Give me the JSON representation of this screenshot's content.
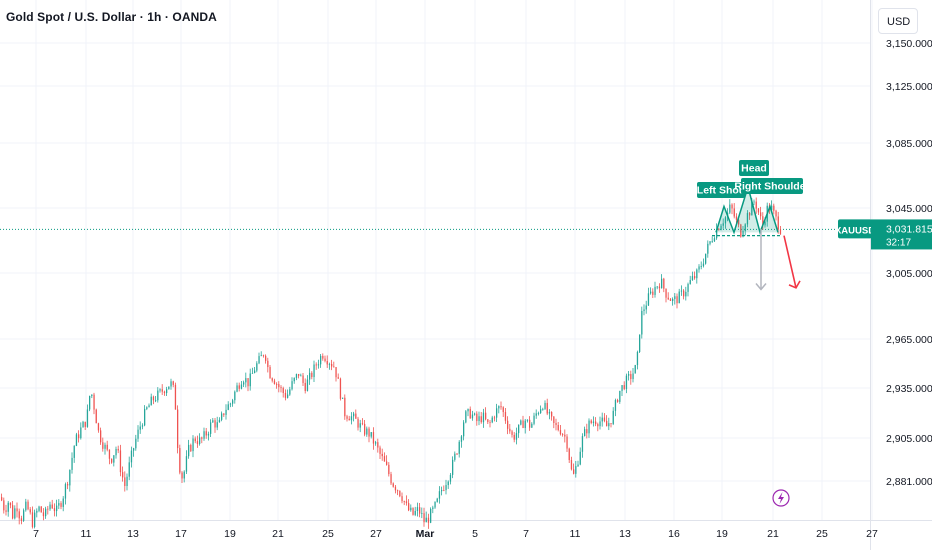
{
  "header": {
    "title": "Gold Spot / U.S. Dollar · 1h · OANDA",
    "currency_button": "USD"
  },
  "colors": {
    "up": "#26a69a",
    "down": "#ef5350",
    "accent_teal": "#089981",
    "grid": "#f0f3fa",
    "text": "#131722",
    "forecast_arrow_red": "#f23645",
    "forecast_arrow_gray": "#b2b5be",
    "event_icon": "#9c27b0"
  },
  "price_label": {
    "symbol": "XAUUSD",
    "price": "3,031.815",
    "countdown": "32:17"
  },
  "event_marker": {
    "icon": "lightning-icon",
    "date": "Mar 21"
  },
  "chart_data": {
    "type": "candlestick",
    "title": "Gold Spot / U.S. Dollar · 1h · OANDA",
    "y_ticks": [
      "3,150.000",
      "3,125.000",
      "3,085.000",
      "3,045.000",
      "3,005.000",
      "2,965.000",
      "2,935.000",
      "2,905.000",
      "2,881.000"
    ],
    "y_tick_values": [
      3150,
      3125,
      3085,
      3045,
      3005,
      2965,
      2935,
      2905,
      2881
    ],
    "x_ticks": [
      "7",
      "11",
      "13",
      "17",
      "19",
      "21",
      "25",
      "27",
      "Mar",
      "5",
      "7",
      "11",
      "13",
      "16",
      "19",
      "21",
      "25",
      "27"
    ],
    "grid": true,
    "current_price": 3031.815,
    "path": [
      [
        0,
        2872
      ],
      [
        4,
        2865
      ],
      [
        8,
        2870
      ],
      [
        12,
        2862
      ],
      [
        16,
        2868
      ],
      [
        20,
        2860
      ],
      [
        26,
        2867
      ],
      [
        32,
        2858
      ],
      [
        38,
        2866
      ],
      [
        44,
        2861
      ],
      [
        50,
        2869
      ],
      [
        56,
        2864
      ],
      [
        62,
        2872
      ],
      [
        68,
        2884
      ],
      [
        74,
        2902
      ],
      [
        80,
        2910
      ],
      [
        86,
        2916
      ],
      [
        90,
        2935
      ],
      [
        94,
        2922
      ],
      [
        98,
        2908
      ],
      [
        104,
        2900
      ],
      [
        110,
        2893
      ],
      [
        116,
        2900
      ],
      [
        120,
        2888
      ],
      [
        124,
        2878
      ],
      [
        128,
        2888
      ],
      [
        134,
        2902
      ],
      [
        140,
        2913
      ],
      [
        146,
        2922
      ],
      [
        152,
        2928
      ],
      [
        158,
        2931
      ],
      [
        164,
        2935
      ],
      [
        170,
        2938
      ],
      [
        174,
        2932
      ],
      [
        178,
        2892
      ],
      [
        182,
        2882
      ],
      [
        188,
        2898
      ],
      [
        194,
        2905
      ],
      [
        200,
        2903
      ],
      [
        206,
        2908
      ],
      [
        212,
        2915
      ],
      [
        218,
        2912
      ],
      [
        224,
        2922
      ],
      [
        230,
        2926
      ],
      [
        236,
        2935
      ],
      [
        242,
        2942
      ],
      [
        248,
        2938
      ],
      [
        254,
        2947
      ],
      [
        260,
        2953
      ],
      [
        264,
        2958
      ],
      [
        268,
        2945
      ],
      [
        274,
        2940
      ],
      [
        280,
        2934
      ],
      [
        286,
        2930
      ],
      [
        292,
        2938
      ],
      [
        298,
        2944
      ],
      [
        304,
        2936
      ],
      [
        310,
        2942
      ],
      [
        316,
        2950
      ],
      [
        322,
        2956
      ],
      [
        328,
        2952
      ],
      [
        334,
        2948
      ],
      [
        338,
        2937
      ],
      [
        344,
        2920
      ],
      [
        350,
        2918
      ],
      [
        356,
        2915
      ],
      [
        362,
        2910
      ],
      [
        368,
        2908
      ],
      [
        374,
        2902
      ],
      [
        380,
        2895
      ],
      [
        386,
        2888
      ],
      [
        392,
        2880
      ],
      [
        398,
        2876
      ],
      [
        402,
        2872
      ],
      [
        406,
        2866
      ],
      [
        412,
        2862
      ],
      [
        418,
        2865
      ],
      [
        424,
        2858
      ],
      [
        430,
        2862
      ],
      [
        436,
        2868
      ],
      [
        440,
        2875
      ],
      [
        446,
        2882
      ],
      [
        452,
        2890
      ],
      [
        458,
        2902
      ],
      [
        464,
        2918
      ],
      [
        470,
        2920
      ],
      [
        476,
        2915
      ],
      [
        482,
        2918
      ],
      [
        488,
        2912
      ],
      [
        494,
        2920
      ],
      [
        500,
        2924
      ],
      [
        506,
        2915
      ],
      [
        512,
        2905
      ],
      [
        518,
        2910
      ],
      [
        524,
        2916
      ],
      [
        530,
        2912
      ],
      [
        536,
        2920
      ],
      [
        542,
        2926
      ],
      [
        548,
        2918
      ],
      [
        554,
        2912
      ],
      [
        560,
        2910
      ],
      [
        566,
        2904
      ],
      [
        572,
        2882
      ],
      [
        576,
        2890
      ],
      [
        582,
        2905
      ],
      [
        588,
        2913
      ],
      [
        594,
        2916
      ],
      [
        600,
        2915
      ],
      [
        606,
        2912
      ],
      [
        612,
        2918
      ],
      [
        618,
        2932
      ],
      [
        624,
        2938
      ],
      [
        630,
        2942
      ],
      [
        636,
        2948
      ],
      [
        640,
        2978
      ],
      [
        644,
        2985
      ],
      [
        648,
        2990
      ],
      [
        654,
        2996
      ],
      [
        660,
        3000
      ],
      [
        666,
        2992
      ],
      [
        672,
        2988
      ],
      [
        678,
        2990
      ],
      [
        684,
        2994
      ],
      [
        690,
        3000
      ],
      [
        696,
        3004
      ],
      [
        702,
        3012
      ],
      [
        708,
        3022
      ],
      [
        714,
        3030
      ],
      [
        720,
        3036
      ],
      [
        726,
        3040
      ],
      [
        730,
        3046
      ],
      [
        736,
        3036
      ],
      [
        740,
        3030
      ],
      [
        746,
        3040
      ],
      [
        750,
        3044
      ],
      [
        754,
        3050
      ],
      [
        758,
        3042
      ],
      [
        762,
        3034
      ],
      [
        766,
        3044
      ],
      [
        770,
        3046
      ],
      [
        774,
        3040
      ],
      [
        780,
        3031.8
      ]
    ],
    "pattern": {
      "name": "head-and-shoulders",
      "labels": [
        "Left Shou",
        "Head",
        "Right Shoulder"
      ],
      "points": [
        [
          716,
          3030
        ],
        [
          724,
          3046
        ],
        [
          734,
          3030
        ],
        [
          748,
          3058
        ],
        [
          760,
          3030
        ],
        [
          770,
          3046
        ],
        [
          778,
          3030
        ]
      ],
      "neckline": 3028
    },
    "projection_gray": {
      "from": 3032,
      "to": 2995
    },
    "projection_red": {
      "from": 3028,
      "to": 2996
    }
  }
}
